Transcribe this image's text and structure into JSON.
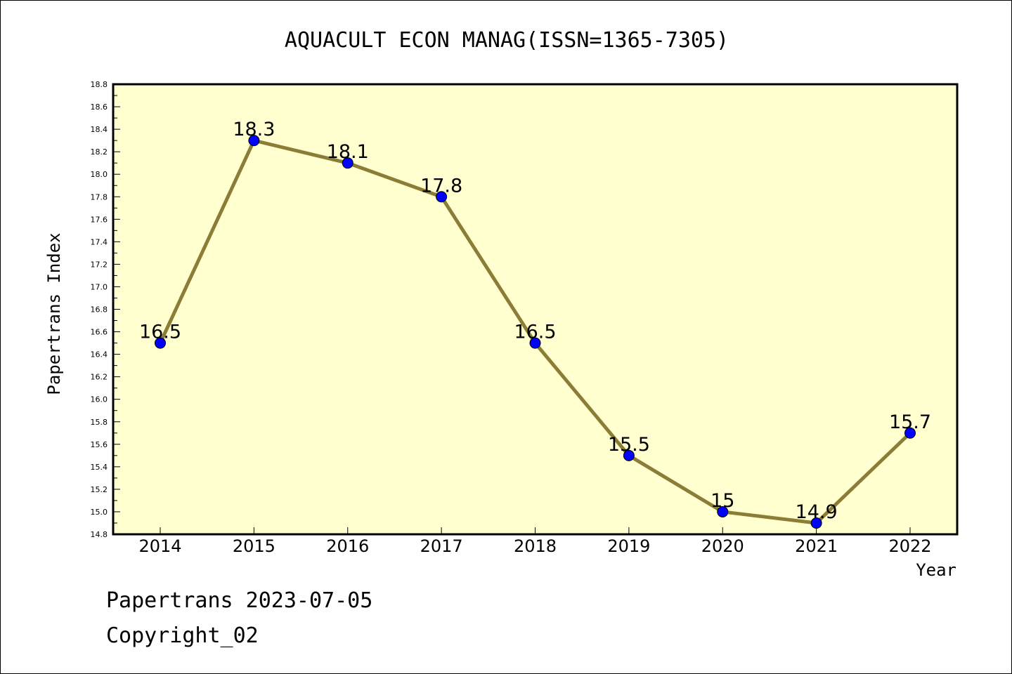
{
  "chart_data": {
    "type": "line",
    "title": "AQUACULT ECON MANAG(ISSN=1365-7305)",
    "xlabel": "Year",
    "ylabel": "Papertrans Index",
    "categories": [
      "2014",
      "2015",
      "2016",
      "2017",
      "2018",
      "2019",
      "2020",
      "2021",
      "2022"
    ],
    "series": [
      {
        "name": "Papertrans Index",
        "values": [
          16.5,
          18.3,
          18.1,
          17.8,
          16.5,
          15.5,
          15.0,
          14.9,
          15.7
        ],
        "labels": [
          "16.5",
          "18.3",
          "18.1",
          "17.8",
          "16.5",
          "15.5",
          "15",
          "14.9",
          "15.7"
        ]
      }
    ],
    "ylim": [
      14.8,
      18.8
    ],
    "yticks": [
      "14.8",
      "15.0",
      "15.2",
      "15.4",
      "15.6",
      "15.8",
      "16.0",
      "16.2",
      "16.4",
      "16.6",
      "16.8",
      "17.0",
      "17.2",
      "17.4",
      "17.6",
      "17.8",
      "18.0",
      "18.2",
      "18.4",
      "18.6",
      "18.8"
    ],
    "grid": false,
    "colors": {
      "plot_background": "#FFFFD0",
      "line": "#8B7D35",
      "marker": "#0000FF",
      "axes": "#000000"
    }
  },
  "footer": {
    "line1": "Papertrans 2023-07-05",
    "line2": "Copyright_02"
  }
}
